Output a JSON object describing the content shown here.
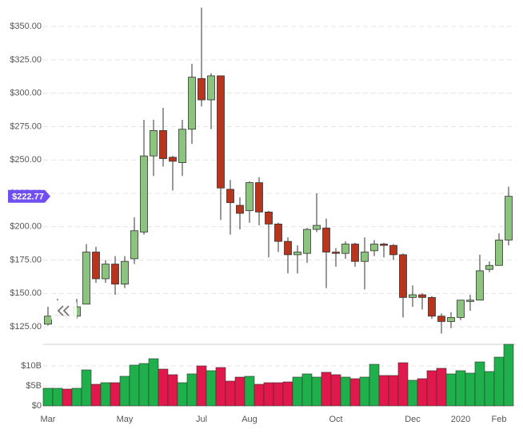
{
  "chart_data": {
    "type": "candlestick",
    "categories": [
      "Mar",
      null,
      null,
      null,
      null,
      null,
      null,
      null,
      "May",
      null,
      null,
      null,
      null,
      null,
      null,
      null,
      "Jul",
      null,
      null,
      null,
      null,
      "Aug",
      null,
      null,
      null,
      null,
      null,
      null,
      null,
      null,
      "Oct",
      null,
      null,
      null,
      null,
      null,
      null,
      null,
      "Dec",
      null,
      null,
      null,
      null,
      "2020",
      null,
      null,
      null,
      "Feb",
      null
    ],
    "open": [
      127,
      133,
      134,
      133,
      142,
      181,
      161,
      172,
      157,
      176,
      196,
      253,
      272,
      252,
      248,
      273,
      311,
      295,
      313,
      228,
      216,
      212,
      233,
      211,
      202,
      189,
      179,
      180,
      198,
      199,
      181,
      180,
      187,
      174,
      182,
      187,
      186,
      179,
      147,
      149,
      147,
      133,
      129,
      132,
      144,
      145,
      168,
      171,
      190
    ],
    "high": [
      140,
      146,
      138,
      146,
      187,
      185,
      175,
      178,
      178,
      207,
      280,
      280,
      289,
      253,
      280,
      322,
      364,
      315,
      313,
      235,
      222,
      234,
      237,
      212,
      203,
      192,
      186,
      199,
      225,
      206,
      184,
      189,
      188,
      192,
      190,
      188,
      187,
      180,
      156,
      150,
      148,
      135,
      136,
      145,
      149,
      179,
      174,
      195,
      230
    ],
    "low": [
      126,
      130,
      130,
      131,
      142,
      158,
      158,
      149,
      154,
      172,
      194,
      238,
      245,
      227,
      238,
      262,
      290,
      273,
      205,
      194,
      198,
      203,
      201,
      177,
      181,
      165,
      165,
      173,
      196,
      154,
      170,
      176,
      170,
      153,
      178,
      177,
      175,
      132,
      140,
      138,
      131,
      120,
      124,
      130,
      137,
      145,
      166,
      171,
      186
    ],
    "close": [
      133,
      134,
      133,
      140,
      181,
      161,
      172,
      157,
      174,
      197,
      253,
      272,
      251,
      249,
      273,
      312,
      295,
      313,
      229,
      218,
      210,
      233,
      211,
      202,
      189,
      179,
      181,
      198,
      201,
      181,
      180,
      187,
      174,
      181,
      187,
      186,
      179,
      147,
      149,
      147,
      133,
      129,
      132,
      145,
      145,
      167,
      171,
      190,
      222.77
    ],
    "volume": [
      4.4,
      4.4,
      4.2,
      4.4,
      9,
      5.4,
      5.8,
      5.8,
      7.4,
      10.2,
      10.6,
      11.8,
      9.2,
      7.8,
      5.8,
      8,
      10,
      8.8,
      9.6,
      6.2,
      7.2,
      7.4,
      5.4,
      5.8,
      5.8,
      6,
      7.2,
      8,
      7.2,
      8.4,
      7.8,
      7.2,
      6.8,
      7.2,
      10.4,
      7.6,
      7.6,
      10.8,
      6.4,
      6.8,
      8.8,
      9.4,
      8,
      8.8,
      8.2,
      11,
      8.6,
      12.2,
      15.4
    ],
    "ylim": [
      112.5,
      365
    ],
    "yticks": [
      {
        "value": 125,
        "label": "$125.00"
      },
      {
        "value": 150,
        "label": "$150.00"
      },
      {
        "value": 175,
        "label": "$175.00"
      },
      {
        "value": 200,
        "label": "$200.00"
      },
      {
        "value": 225,
        "label": "$225.00"
      },
      {
        "value": 250,
        "label": "$250.00"
      },
      {
        "value": 275,
        "label": "$275.00"
      },
      {
        "value": 300,
        "label": "$300.00"
      },
      {
        "value": 325,
        "label": "$325.00"
      },
      {
        "value": 350,
        "label": "$350.00"
      }
    ],
    "volume_ylim": [
      0,
      15.4
    ],
    "volume_yticks": [
      {
        "value": 0,
        "label": "$0"
      },
      {
        "value": 5,
        "label": "$5B"
      },
      {
        "value": 10,
        "label": "$10B"
      }
    ],
    "current_price": {
      "value": 222.77,
      "label": "$222.77"
    },
    "grid": true,
    "up_color": "#8cc47f",
    "down_color": "#b9341c",
    "volume_up_color": "#20b04b",
    "volume_down_color": "#e0184c"
  }
}
